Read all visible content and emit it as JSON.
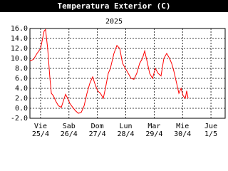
{
  "chart_data": {
    "type": "line",
    "title": "Temperatura Exterior (C)",
    "subtitle": "2025",
    "x": [
      -9,
      -6,
      -3,
      0,
      3,
      4.2,
      6,
      7.9,
      9.1,
      10.9,
      12.7,
      15.1,
      17.5,
      19.3,
      21.1,
      22.9,
      24.7,
      27.1,
      29.5,
      32,
      34.4,
      36.8,
      39.2,
      41.6,
      44,
      45.8,
      48.2,
      50.6,
      53,
      54.8,
      57.2,
      59,
      62,
      64.5,
      66.9,
      69.3,
      71.7,
      74.1,
      76.5,
      78.9,
      81.3,
      83.7,
      86.1,
      88,
      90.4,
      92.2,
      94.6,
      97,
      99.4,
      101.8,
      104.2,
      106.6,
      109,
      110.8,
      112.6,
      115,
      116.9,
      118.7,
      120.5,
      122.3,
      123.5,
      124.7
    ],
    "series": [
      {
        "name": "Temperatura Exterior",
        "color": "#ff0000",
        "values": [
          9.5,
          9.8,
          11,
          12,
          15.5,
          15.8,
          12,
          6,
          3,
          2.5,
          1.5,
          0.5,
          0.2,
          1.5,
          2.8,
          2,
          1,
          0.2,
          -0.5,
          -1,
          -0.8,
          0.5,
          3,
          5,
          6.3,
          5,
          3.5,
          3,
          2,
          4,
          7,
          8,
          11,
          12.6,
          12,
          9,
          8,
          7,
          6,
          5.8,
          7,
          9,
          10,
          11.5,
          9,
          7,
          6,
          8,
          7,
          6.5,
          10,
          11,
          10,
          9,
          7.5,
          5,
          3,
          4,
          2.5,
          2,
          3.5,
          2
        ]
      }
    ],
    "xlim": [
      -9,
      156
    ],
    "xticks": [
      {
        "value": 0,
        "label": "Vie 25/4"
      },
      {
        "value": 24,
        "label": "Sab 26/4"
      },
      {
        "value": 48,
        "label": "Dom 27/4"
      },
      {
        "value": 72,
        "label": "Lun 28/4"
      },
      {
        "value": 96,
        "label": "Mar 29/4"
      },
      {
        "value": 120,
        "label": "Mie 30/4"
      },
      {
        "value": 144,
        "label": "Jue 1/5"
      }
    ],
    "ylim": [
      -2,
      16
    ],
    "yticks": [
      {
        "value": 16,
        "label": "16.0"
      },
      {
        "value": 14,
        "label": "14.0"
      },
      {
        "value": 12,
        "label": "12.0"
      },
      {
        "value": 10,
        "label": "10.0"
      },
      {
        "value": 8,
        "label": "8.0"
      },
      {
        "value": 6,
        "label": "6.0"
      },
      {
        "value": 4,
        "label": "4.0"
      },
      {
        "value": 2,
        "label": "2.0"
      },
      {
        "value": 0,
        "label": "0.0"
      },
      {
        "value": -2,
        "label": "-2.0"
      }
    ],
    "grid": true
  }
}
